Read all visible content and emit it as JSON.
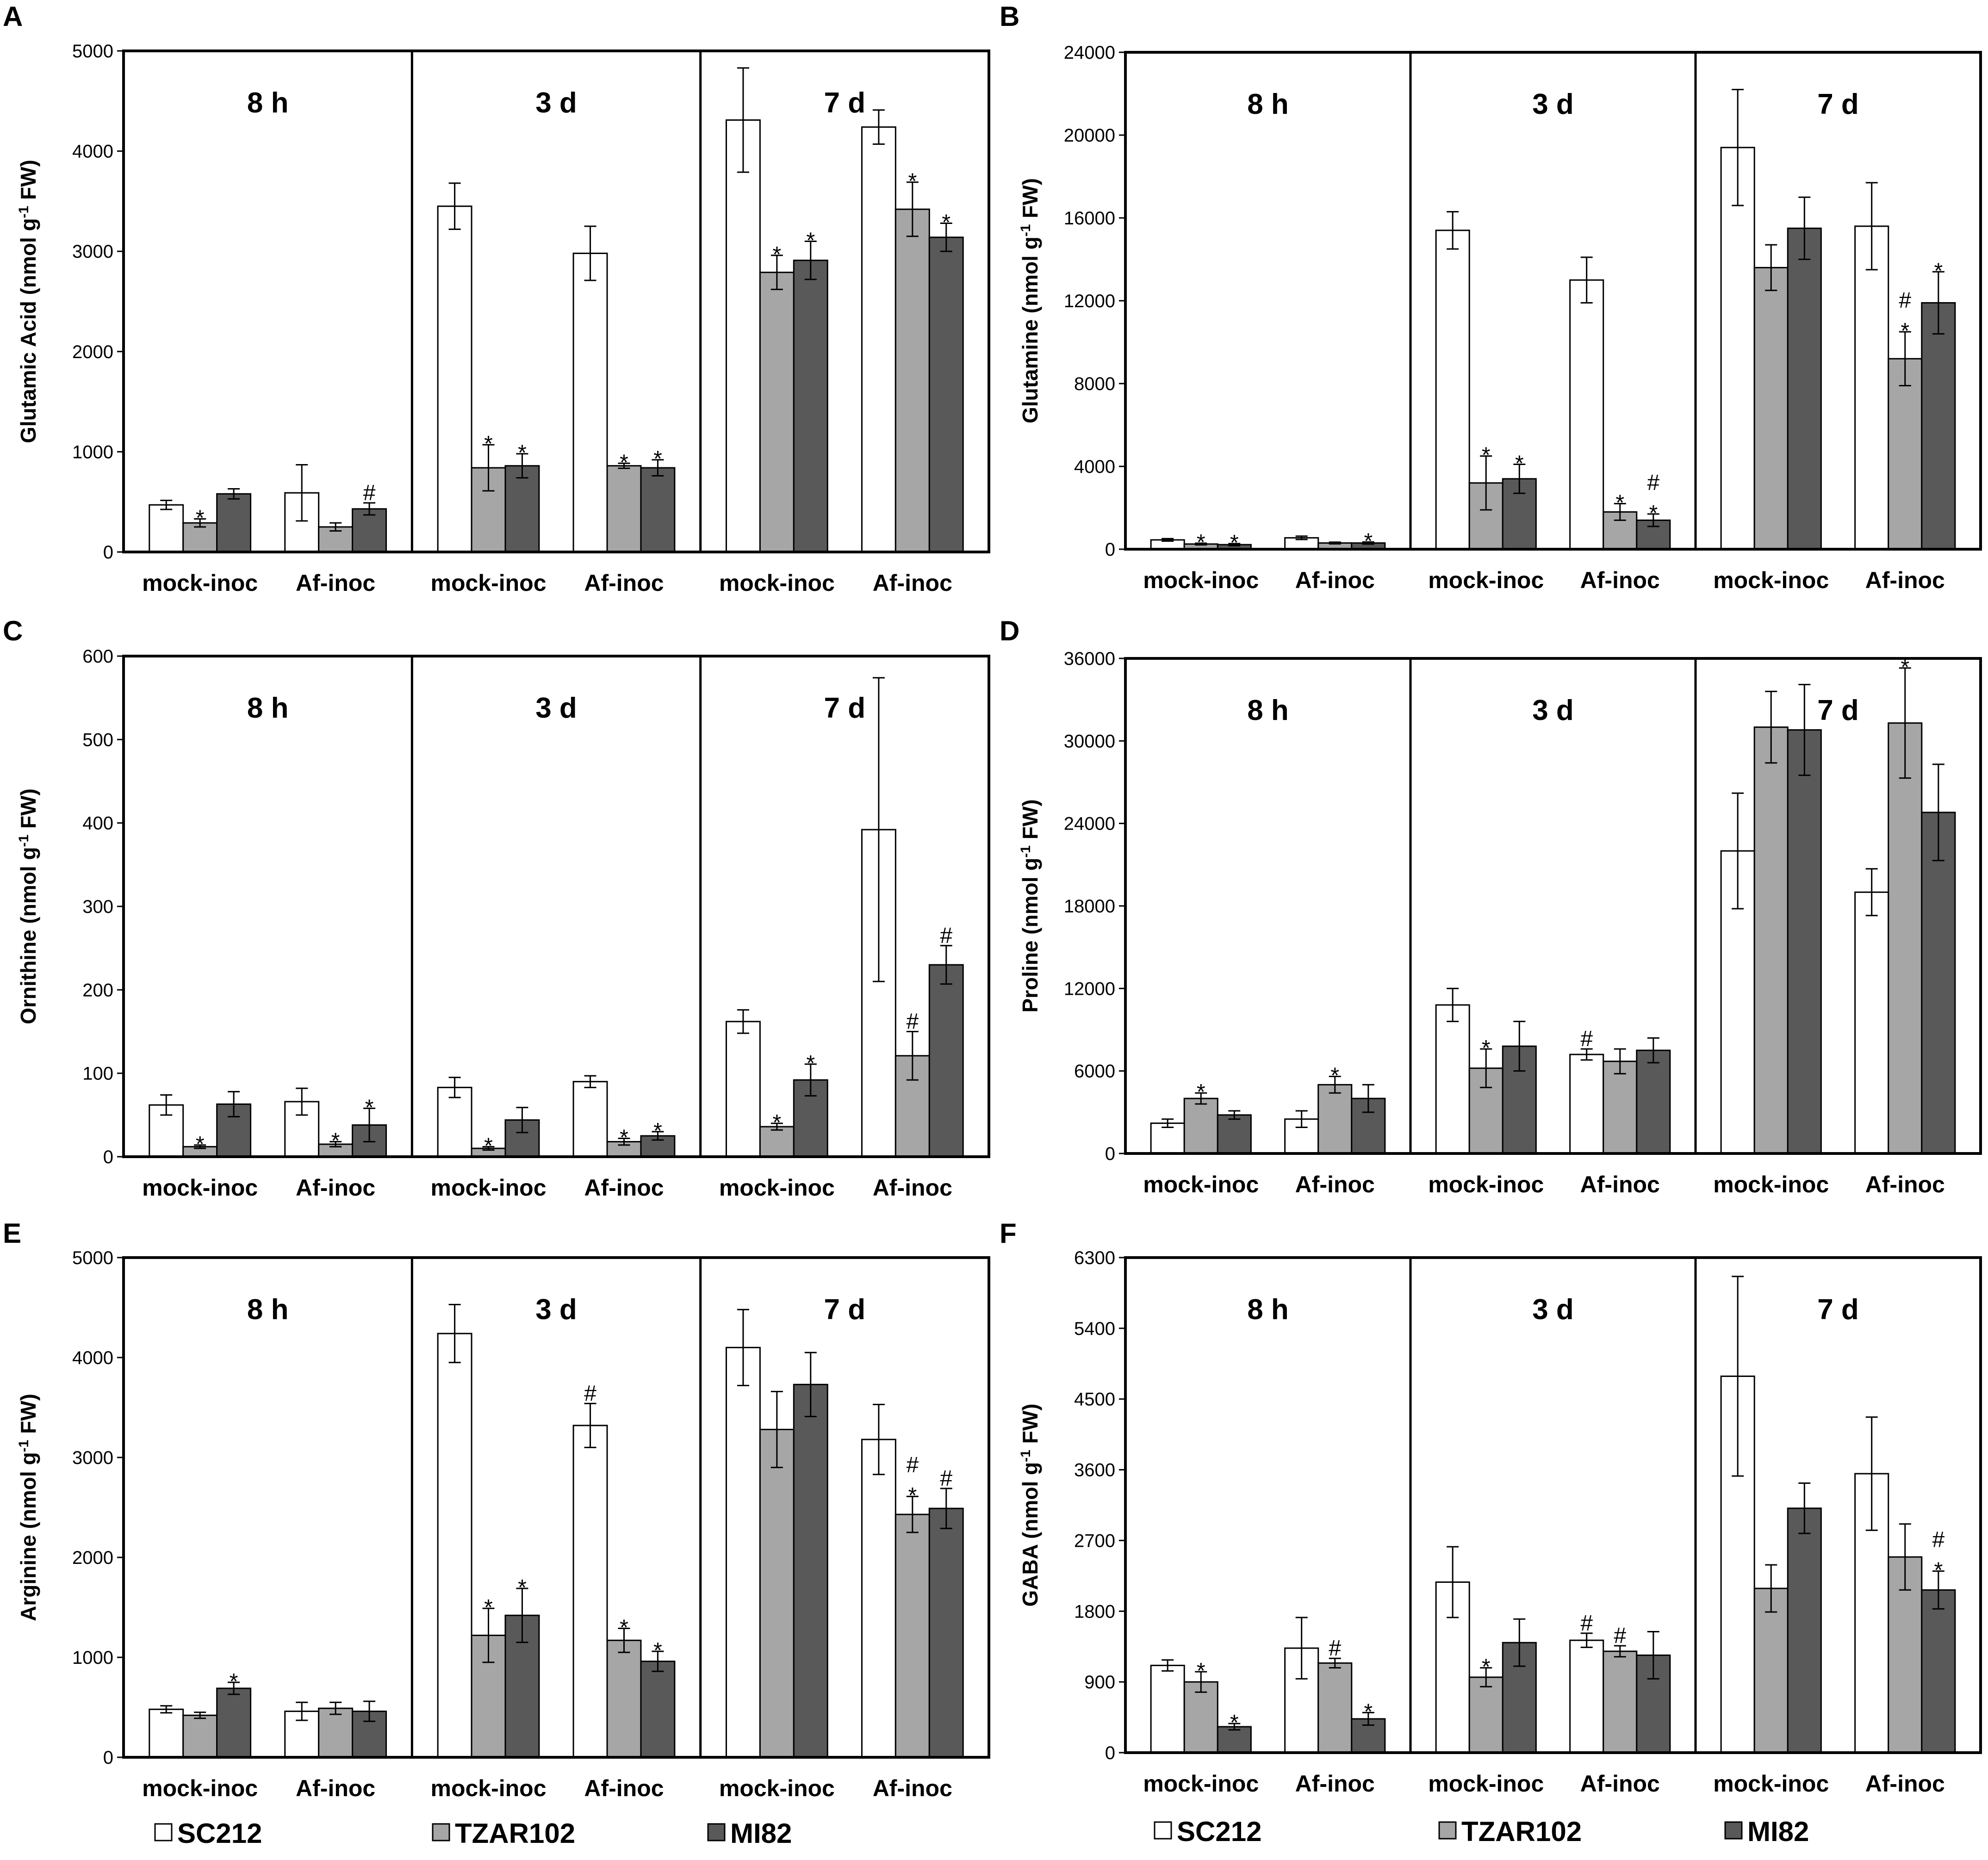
{
  "chart_data": [
    {
      "panel": "A",
      "type": "bar",
      "ylabel": "Glutamic Acid (nmol g-1 FW)",
      "ylim": [
        0,
        5000
      ],
      "yticks": [
        "0",
        "1000",
        "2000",
        "3000",
        "4000",
        "5000"
      ],
      "times": [
        "8 h",
        "3 d",
        "7 d"
      ],
      "groups": [
        "mock-inoc",
        "Af-inoc"
      ],
      "series_names": [
        "SC212",
        "TZAR102",
        "MI82"
      ],
      "values": [
        [
          [
            470,
            290,
            580
          ],
          [
            590,
            250,
            430
          ]
        ],
        [
          [
            3450,
            840,
            860
          ],
          [
            2980,
            860,
            840
          ]
        ],
        [
          [
            4310,
            2790,
            2910
          ],
          [
            4240,
            3420,
            3140
          ]
        ]
      ],
      "errors": [
        [
          [
            45,
            40,
            50
          ],
          [
            280,
            40,
            60
          ]
        ],
        [
          [
            230,
            230,
            120
          ],
          [
            270,
            25,
            80
          ]
        ],
        [
          [
            520,
            170,
            190
          ],
          [
            170,
            270,
            140
          ]
        ]
      ],
      "marks": [
        [
          [
            "",
            "*",
            ""
          ],
          [
            "",
            "",
            "#"
          ]
        ],
        [
          [
            "",
            "*",
            "*"
          ],
          [
            "",
            "*",
            "*"
          ]
        ],
        [
          [
            "",
            "*",
            "*"
          ],
          [
            "",
            "*",
            "*"
          ]
        ]
      ]
    },
    {
      "panel": "B",
      "type": "bar",
      "ylabel": "Glutamine (nmol g-1 FW)",
      "ylim": [
        0,
        24000
      ],
      "yticks": [
        "0",
        "4000",
        "8000",
        "12000",
        "16000",
        "20000",
        "24000"
      ],
      "times": [
        "8 h",
        "3 d",
        "7 d"
      ],
      "groups": [
        "mock-inoc",
        "Af-inoc"
      ],
      "series_names": [
        "SC212",
        "TZAR102",
        "MI82"
      ],
      "values": [
        [
          [
            450,
            250,
            220
          ],
          [
            550,
            300,
            300
          ]
        ],
        [
          [
            15400,
            3200,
            3400
          ],
          [
            13000,
            1800,
            1400
          ]
        ],
        [
          [
            19400,
            13600,
            15500
          ],
          [
            15600,
            9200,
            11900
          ]
        ]
      ],
      "errors": [
        [
          [
            60,
            40,
            50
          ],
          [
            80,
            40,
            50
          ]
        ],
        [
          [
            900,
            1300,
            700
          ],
          [
            1100,
            400,
            300
          ]
        ],
        [
          [
            2800,
            1100,
            1500
          ],
          [
            2100,
            1300,
            1500
          ]
        ]
      ],
      "marks": [
        [
          [
            "",
            "*",
            "*"
          ],
          [
            "",
            "",
            "*"
          ]
        ],
        [
          [
            "",
            "*",
            "*"
          ],
          [
            "",
            "*",
            "#*"
          ]
        ],
        [
          [
            "",
            "",
            ""
          ],
          [
            "",
            "#*",
            "*"
          ]
        ]
      ]
    },
    {
      "panel": "C",
      "type": "bar",
      "ylabel": "Ornithine (nmol g-1 FW)",
      "ylim": [
        0,
        600
      ],
      "yticks": [
        "0",
        "100",
        "200",
        "300",
        "400",
        "500",
        "600"
      ],
      "times": [
        "8 h",
        "3 d",
        "7 d"
      ],
      "groups": [
        "mock-inoc",
        "Af-inoc"
      ],
      "series_names": [
        "SC212",
        "TZAR102",
        "MI82"
      ],
      "values": [
        [
          [
            62,
            12,
            63
          ],
          [
            66,
            15,
            38
          ]
        ],
        [
          [
            83,
            10,
            44
          ],
          [
            90,
            18,
            25
          ]
        ],
        [
          [
            162,
            36,
            92
          ],
          [
            392,
            121,
            230
          ]
        ]
      ],
      "errors": [
        [
          [
            12,
            2,
            15
          ],
          [
            16,
            3,
            20
          ]
        ],
        [
          [
            12,
            2,
            15
          ],
          [
            7,
            4,
            5
          ]
        ],
        [
          [
            14,
            4,
            19
          ],
          [
            182,
            29,
            23
          ]
        ]
      ],
      "marks": [
        [
          [
            "",
            "*",
            ""
          ],
          [
            "",
            "*",
            "*"
          ]
        ],
        [
          [
            "",
            "*",
            ""
          ],
          [
            "",
            "*",
            "*"
          ]
        ],
        [
          [
            "",
            "*",
            "*"
          ],
          [
            "",
            "#",
            "#"
          ]
        ]
      ]
    },
    {
      "panel": "D",
      "type": "bar",
      "ylabel": "Proline (nmol g-1 FW)",
      "ylim": [
        0,
        36000
      ],
      "yticks": [
        "0",
        "6000",
        "12000",
        "18000",
        "24000",
        "30000",
        "36000"
      ],
      "times": [
        "8 h",
        "3 d",
        "7 d"
      ],
      "groups": [
        "mock-inoc",
        "Af-inoc"
      ],
      "series_names": [
        "SC212",
        "TZAR102",
        "MI82"
      ],
      "values": [
        [
          [
            2200,
            4000,
            2800
          ],
          [
            2500,
            5000,
            4000
          ]
        ],
        [
          [
            10800,
            6200,
            7800
          ],
          [
            7200,
            6700,
            7500
          ]
        ],
        [
          [
            22000,
            31000,
            30800
          ],
          [
            19000,
            31300,
            24800
          ]
        ]
      ],
      "errors": [
        [
          [
            300,
            400,
            300
          ],
          [
            600,
            600,
            1000
          ]
        ],
        [
          [
            1200,
            1400,
            1800
          ],
          [
            400,
            900,
            900
          ]
        ],
        [
          [
            4200,
            2600,
            3300
          ],
          [
            1700,
            4000,
            3500
          ]
        ]
      ],
      "marks": [
        [
          [
            "",
            "*",
            ""
          ],
          [
            "",
            "*",
            ""
          ]
        ],
        [
          [
            "",
            "*",
            ""
          ],
          [
            "#",
            "",
            ""
          ]
        ],
        [
          [
            "",
            "",
            ""
          ],
          [
            "",
            "*",
            ""
          ]
        ]
      ]
    },
    {
      "panel": "E",
      "type": "bar",
      "ylabel": "Arginine (nmol g-1 FW)",
      "ylim": [
        0,
        5000
      ],
      "yticks": [
        "0",
        "1000",
        "2000",
        "3000",
        "4000",
        "5000"
      ],
      "times": [
        "8 h",
        "3 d",
        "7 d"
      ],
      "groups": [
        "mock-inoc",
        "Af-inoc"
      ],
      "series_names": [
        "SC212",
        "TZAR102",
        "MI82"
      ],
      "values": [
        [
          [
            480,
            420,
            690
          ],
          [
            460,
            490,
            460
          ]
        ],
        [
          [
            4240,
            1220,
            1420
          ],
          [
            3320,
            1170,
            960
          ]
        ],
        [
          [
            4100,
            3280,
            3730
          ],
          [
            3180,
            2430,
            2490
          ]
        ]
      ],
      "errors": [
        [
          [
            35,
            30,
            60
          ],
          [
            90,
            60,
            100
          ]
        ],
        [
          [
            290,
            270,
            270
          ],
          [
            220,
            120,
            100
          ]
        ],
        [
          [
            380,
            380,
            320
          ],
          [
            350,
            180,
            200
          ]
        ]
      ],
      "marks": [
        [
          [
            "",
            "",
            "*"
          ],
          [
            "",
            "",
            ""
          ]
        ],
        [
          [
            "",
            "*",
            "*"
          ],
          [
            "#",
            "*",
            "*"
          ]
        ],
        [
          [
            "",
            "",
            ""
          ],
          [
            "",
            "#*",
            "#"
          ]
        ]
      ]
    },
    {
      "panel": "F",
      "type": "bar",
      "ylabel": "GABA (nmol g-1 FW)",
      "ylim": [
        0,
        6300
      ],
      "yticks": [
        "0",
        "900",
        "1800",
        "2700",
        "3600",
        "4500",
        "5400",
        "6300"
      ],
      "times": [
        "8 h",
        "3 d",
        "7 d"
      ],
      "groups": [
        "mock-inoc",
        "Af-inoc"
      ],
      "series_names": [
        "SC212",
        "TZAR102",
        "MI82"
      ],
      "values": [
        [
          [
            1110,
            900,
            330
          ],
          [
            1330,
            1140,
            430
          ]
        ],
        [
          [
            2170,
            960,
            1400
          ],
          [
            1430,
            1290,
            1240
          ]
        ],
        [
          [
            4790,
            2090,
            3110
          ],
          [
            3550,
            2490,
            2070
          ]
        ]
      ],
      "errors": [
        [
          [
            70,
            130,
            40
          ],
          [
            390,
            60,
            80
          ]
        ],
        [
          [
            450,
            120,
            300
          ],
          [
            90,
            70,
            300
          ]
        ],
        [
          [
            1270,
            300,
            320
          ],
          [
            720,
            420,
            240
          ]
        ]
      ],
      "marks": [
        [
          [
            "",
            "*",
            "*"
          ],
          [
            "",
            "#",
            "*"
          ]
        ],
        [
          [
            "",
            "*",
            ""
          ],
          [
            "#",
            "#",
            ""
          ]
        ],
        [
          [
            "",
            "",
            ""
          ],
          [
            "",
            "",
            "#*"
          ]
        ]
      ]
    }
  ],
  "legend_left": {
    "items": [
      "SC212",
      "TZAR102",
      "MI82"
    ]
  },
  "legend_right": {
    "items": [
      "SC212",
      "TZAR102",
      "MI82"
    ]
  },
  "colors": {
    "SC212": "#ffffff",
    "TZAR102": "#a6a6a6",
    "MI82": "#595959",
    "frame": "#000000"
  }
}
